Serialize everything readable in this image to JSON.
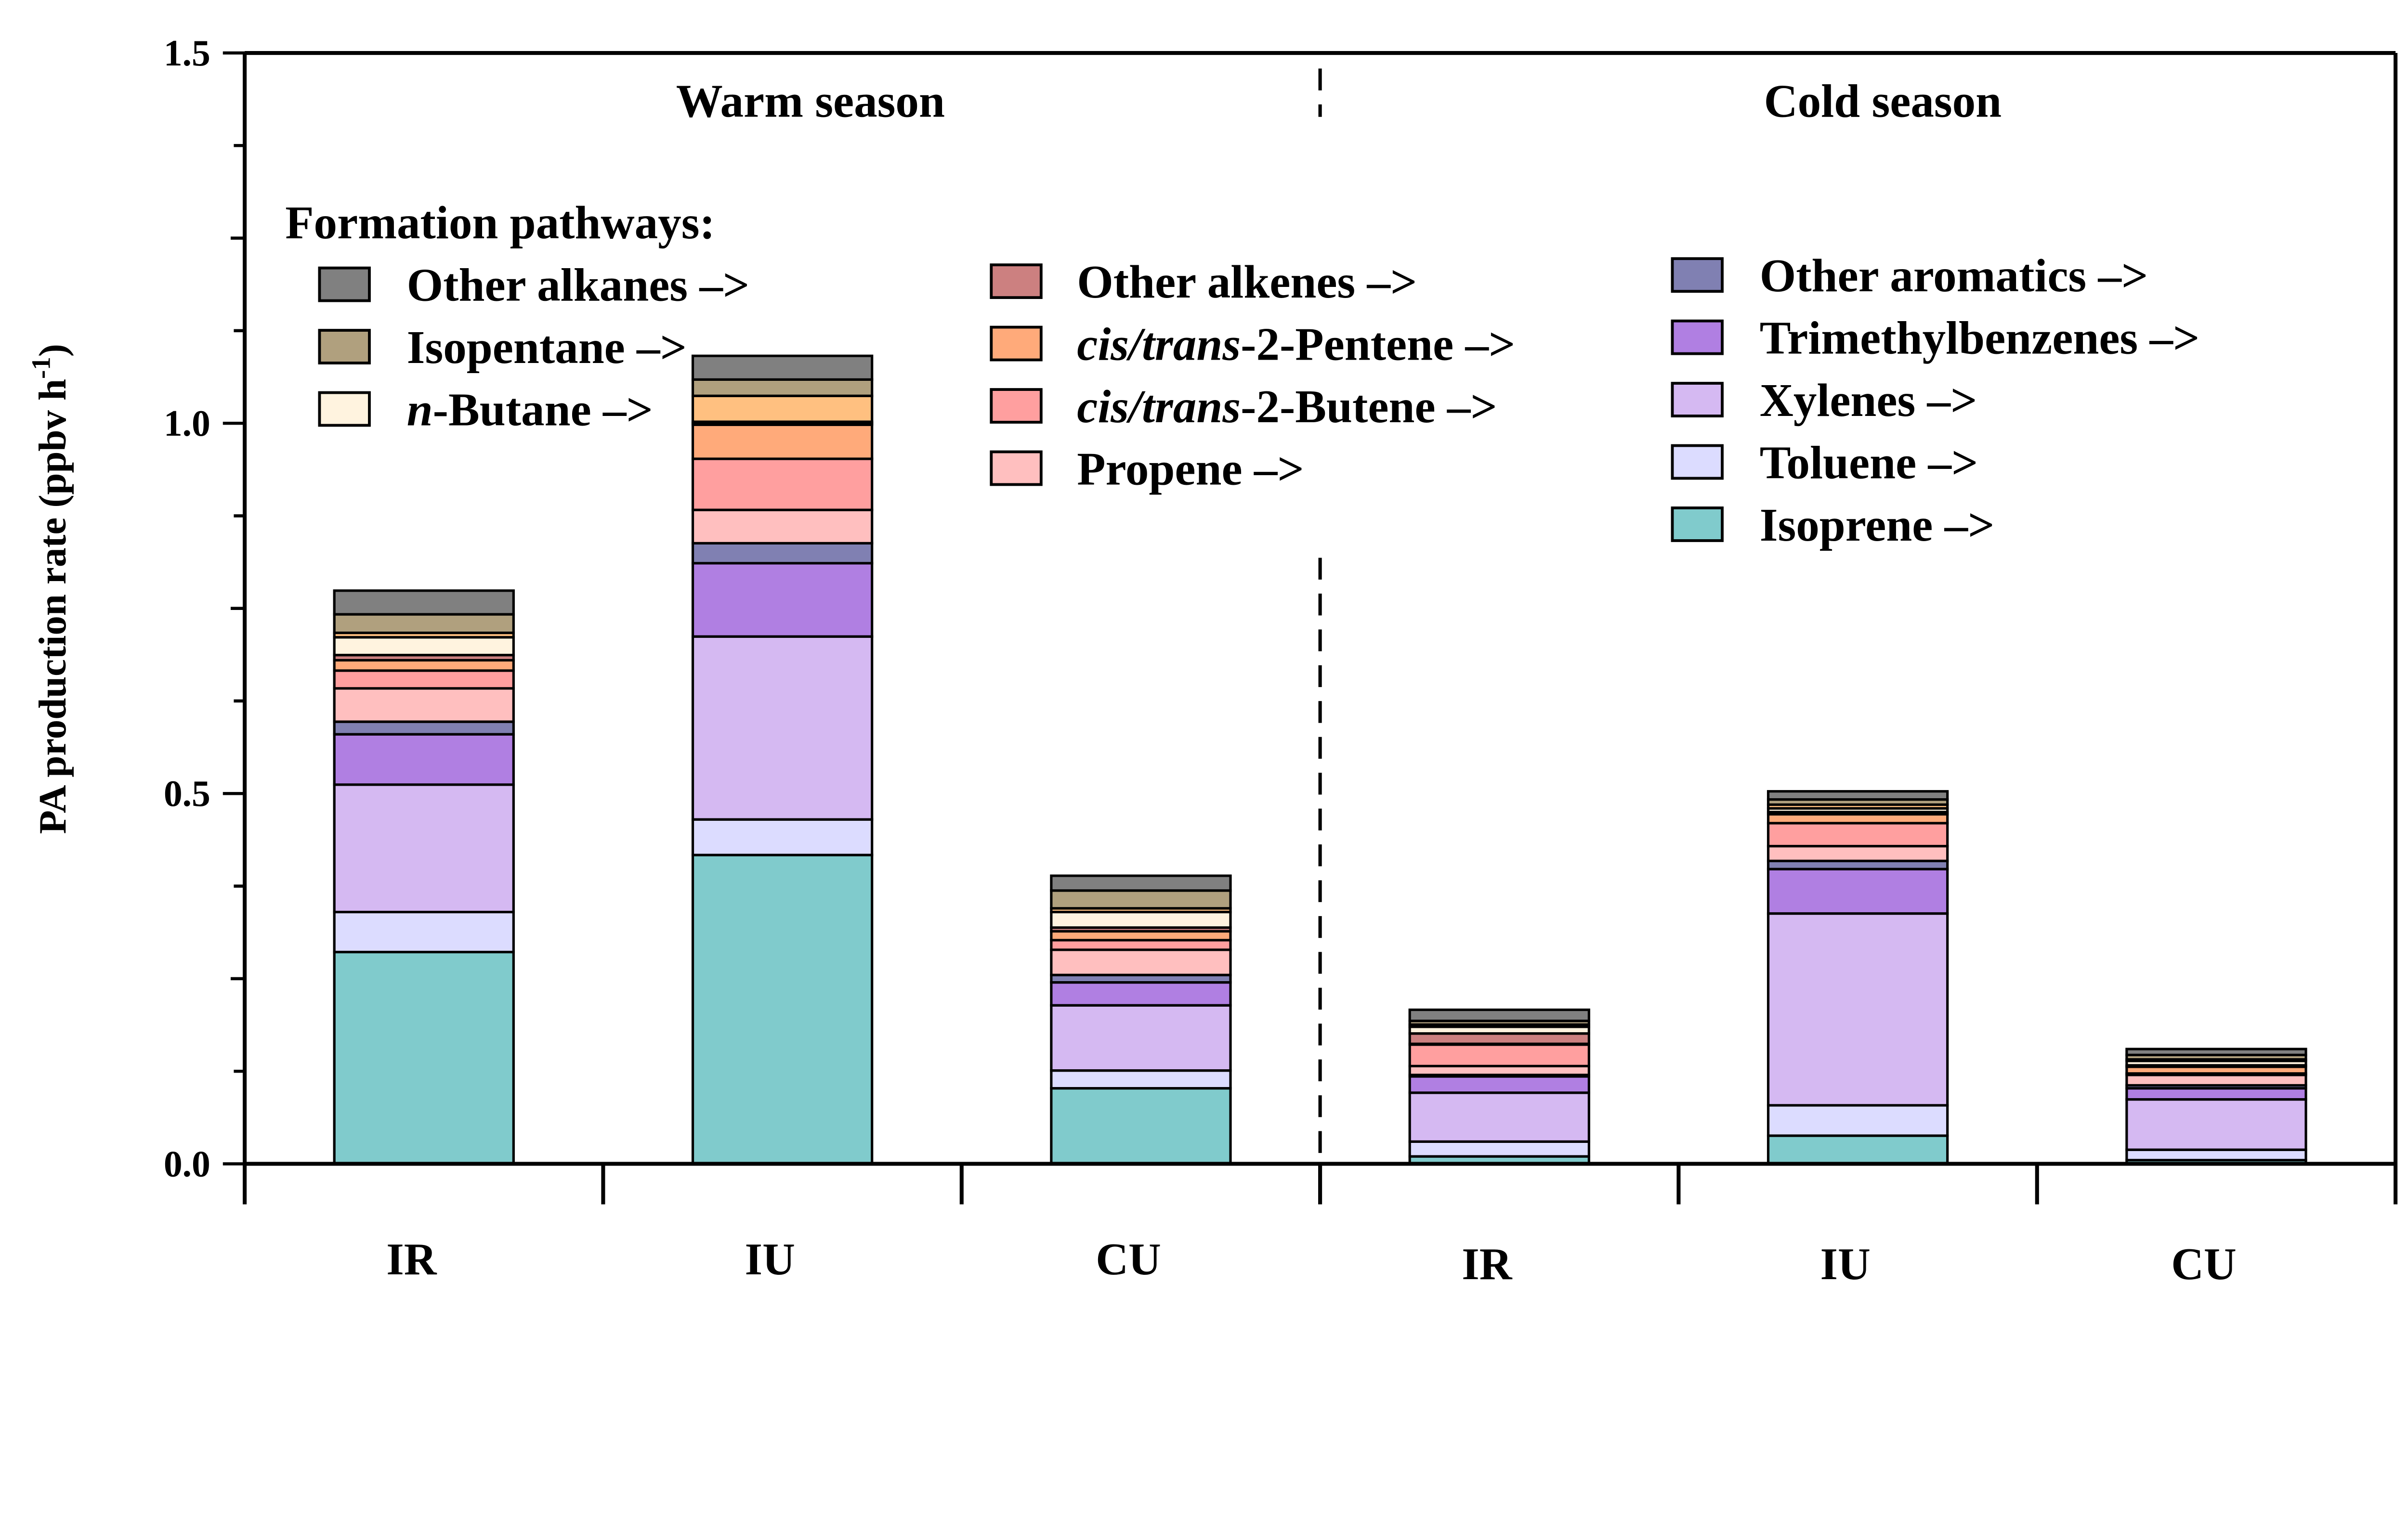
{
  "chart_data": {
    "type": "bar",
    "stacked": true,
    "ylabel": {
      "main": "PA production rate (ppbv h",
      "sup": "-1",
      "end": ")"
    },
    "ylim": [
      0,
      1.5
    ],
    "yticks": [
      "0.0",
      "0.5",
      "1.0",
      "1.5"
    ],
    "ytick_values": [
      0,
      0.5,
      1.0,
      1.5
    ],
    "groups": [
      {
        "title": "Warm season",
        "categories": [
          "IR",
          "IU",
          "CU"
        ]
      },
      {
        "title": "Cold season",
        "categories": [
          "IR",
          "IU",
          "CU"
        ]
      }
    ],
    "legend_title": "Formation pathways:",
    "series": [
      {
        "name": "Isoprene",
        "italic": "",
        "rest": "Isoprene –>",
        "color": "#80cbcc",
        "values": [
          0.286,
          0.417,
          0.102,
          0.01,
          0.038,
          0.005
        ]
      },
      {
        "name": "Toluene",
        "italic": "",
        "rest": "Toluene –>",
        "color": "#dcdcff",
        "values": [
          0.054,
          0.048,
          0.024,
          0.02,
          0.041,
          0.014
        ]
      },
      {
        "name": "Xylenes",
        "italic": "",
        "rest": "Xylenes –>",
        "color": "#d5b9f2",
        "values": [
          0.172,
          0.247,
          0.088,
          0.066,
          0.259,
          0.068
        ]
      },
      {
        "name": "Trimethylbenzenes",
        "italic": "",
        "rest": "Trimethylbenzenes –>",
        "color": "#b07fe2",
        "values": [
          0.068,
          0.099,
          0.031,
          0.022,
          0.06,
          0.015
        ]
      },
      {
        "name": "Other aromatics",
        "italic": "",
        "rest": "Other aromatics –>",
        "color": "#8080b2",
        "values": [
          0.017,
          0.027,
          0.01,
          0.002,
          0.011,
          0.004
        ]
      },
      {
        "name": "Propene",
        "italic": "",
        "rest": "Propene –>",
        "color": "#ffbfbf",
        "values": [
          0.045,
          0.045,
          0.034,
          0.012,
          0.02,
          0.014
        ]
      },
      {
        "name": "cis/trans-2-Butene",
        "italic": "cis/trans",
        "rest": "-2-Butene –>",
        "color": "#ff9f9f",
        "values": [
          0.024,
          0.069,
          0.013,
          0.029,
          0.031,
          0.002
        ]
      },
      {
        "name": "cis/trans-2-Pentene",
        "italic": "cis/trans",
        "rest": "-2-Pentene –>",
        "color": "#ffaa7a",
        "values": [
          0.014,
          0.046,
          0.012,
          0.001,
          0.012,
          0.009
        ]
      },
      {
        "name": "Other alkenes",
        "italic": "",
        "rest": "Other alkenes –>",
        "color": "#cc8080",
        "values": [
          0.007,
          0.002,
          0.005,
          0.014,
          0.003,
          0.002
        ]
      },
      {
        "name": "n-Butane",
        "italic": "n",
        "rest": "-Butane –>",
        "color": "#fff3df",
        "values": [
          0.024,
          0.002,
          0.021,
          0.009,
          0.005,
          0.006
        ]
      },
      {
        "color": "#ffc080",
        "values": [
          0.006,
          0.035,
          0.005,
          0.003,
          0.005,
          0.002
        ]
      },
      {
        "name": "Isopentane",
        "italic": "",
        "rest": "Isopentane –>",
        "color": "#b0a07e",
        "values": [
          0.025,
          0.022,
          0.024,
          0.005,
          0.007,
          0.006
        ]
      },
      {
        "name": "Other alkanes",
        "italic": "",
        "rest": "Other alkanes –>",
        "color": "#808080",
        "values": [
          0.032,
          0.032,
          0.02,
          0.015,
          0.011,
          0.008
        ]
      }
    ],
    "legend_columns": [
      [
        "Other alkanes",
        "Isopentane",
        "n-Butane"
      ],
      [
        "Other alkenes",
        "cis/trans-2-Pentene",
        "cis/trans-2-Butene",
        "Propene"
      ],
      [
        "Other aromatics",
        "Trimethylbenzenes",
        "Xylenes",
        "Toluene",
        "Isoprene"
      ]
    ],
    "grid": false,
    "legend_placement": "top"
  }
}
